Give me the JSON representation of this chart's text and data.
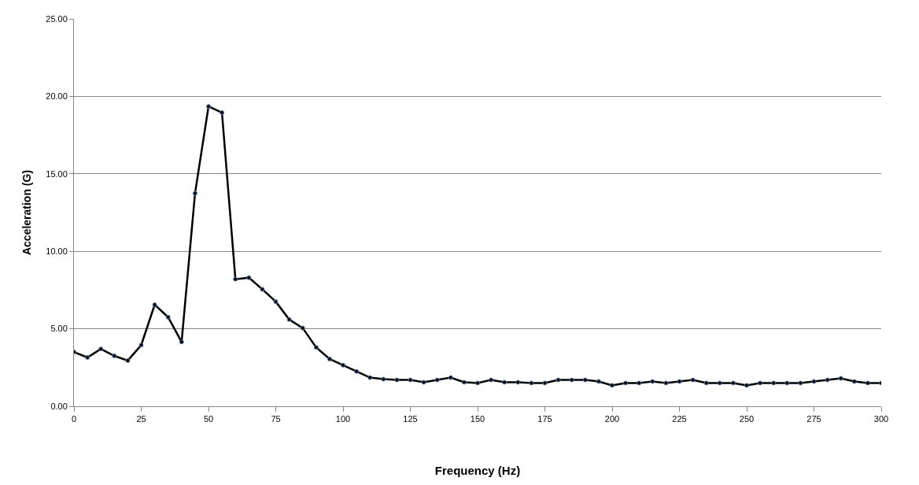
{
  "chart_data": {
    "type": "line",
    "xlabel": "Frequency (Hz)",
    "ylabel": "Acceleration (G)",
    "x": [
      0,
      5,
      10,
      15,
      20,
      25,
      30,
      35,
      40,
      45,
      50,
      55,
      60,
      65,
      70,
      75,
      80,
      85,
      90,
      95,
      100,
      105,
      110,
      115,
      120,
      125,
      130,
      135,
      140,
      145,
      150,
      155,
      160,
      165,
      170,
      175,
      180,
      185,
      190,
      195,
      200,
      205,
      210,
      215,
      220,
      225,
      230,
      235,
      240,
      245,
      250,
      255,
      260,
      265,
      270,
      275,
      280,
      285,
      290,
      295,
      300
    ],
    "series": [
      {
        "color": "#000000",
        "values": [
          3.5,
          3.15,
          3.7,
          3.25,
          2.95,
          3.95,
          6.55,
          5.75,
          4.15,
          13.75,
          19.35,
          18.95,
          8.2,
          8.3,
          7.55,
          6.75,
          5.6,
          5.05,
          3.8,
          3.05,
          2.65,
          2.25,
          1.85,
          1.75,
          1.7,
          1.7,
          1.55,
          1.7,
          1.85,
          1.55,
          1.5,
          1.7,
          1.55,
          1.55,
          1.5,
          1.5,
          1.7,
          1.7,
          1.7,
          1.6,
          1.35,
          1.5,
          1.5,
          1.6,
          1.5,
          1.6,
          1.7,
          1.5,
          1.5,
          1.5,
          1.35,
          1.5,
          1.5,
          1.5,
          1.5,
          1.6,
          1.7,
          1.8,
          1.6,
          1.5,
          1.5
        ]
      }
    ],
    "xlim": [
      0,
      300
    ],
    "xticks": [
      0,
      25,
      50,
      75,
      100,
      125,
      150,
      175,
      200,
      225,
      250,
      275,
      300
    ],
    "ylim": [
      0,
      25
    ],
    "yticks": [
      {
        "value": 0,
        "label": "0.00"
      },
      {
        "value": 5,
        "label": "5.00"
      },
      {
        "value": 10,
        "label": "10.00"
      },
      {
        "value": 15,
        "label": "15.00"
      },
      {
        "value": 20,
        "label": "20.00"
      },
      {
        "value": 25,
        "label": "25.00"
      }
    ],
    "grid": "y",
    "marker": "circle",
    "line_style": "solid",
    "legend": false
  }
}
